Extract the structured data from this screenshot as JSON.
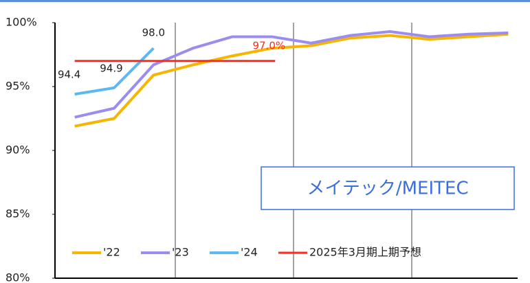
{
  "chart_data": {
    "type": "line",
    "categories": [
      null,
      null,
      null,
      null,
      null,
      null,
      null,
      null,
      null,
      null,
      null,
      null
    ],
    "series": [
      {
        "name": "'22",
        "color": "#f7b500",
        "values": [
          91.9,
          92.5,
          95.9,
          96.7,
          97.4,
          98.0,
          98.2,
          98.8,
          99.0,
          98.7,
          98.9,
          99.1
        ]
      },
      {
        "name": "'23",
        "color": "#9b8cf0",
        "values": [
          92.6,
          93.3,
          96.7,
          98.0,
          98.9,
          98.9,
          98.4,
          99.0,
          99.3,
          98.9,
          99.1,
          99.2
        ]
      },
      {
        "name": "'24",
        "color": "#5bb8f5",
        "values": [
          94.4,
          94.9,
          98.0,
          null,
          null,
          null,
          null,
          null,
          null,
          null,
          null,
          null
        ],
        "value_labels": [
          "94.4",
          "94.9",
          "98.0",
          null,
          null,
          null,
          null,
          null,
          null,
          null,
          null,
          null
        ]
      },
      {
        "name": "2025年3月期上期予想",
        "color": "#ff2a1a",
        "values": [
          97.0,
          97.0,
          97.0,
          97.0,
          97.0,
          97.0,
          null,
          null,
          null,
          null,
          null,
          null
        ],
        "value_labels": [
          null,
          null,
          null,
          null,
          null,
          "97.0%",
          null,
          null,
          null,
          null,
          null,
          null
        ]
      }
    ],
    "ylim": [
      80,
      100
    ],
    "yticks": [
      {
        "value": 80,
        "label": "80%"
      },
      {
        "value": 85,
        "label": "85%"
      },
      {
        "value": 90,
        "label": "90%"
      },
      {
        "value": 95,
        "label": "95%"
      },
      {
        "value": 100,
        "label": "100%"
      }
    ],
    "annotation": "メイテック/MEITEC"
  }
}
